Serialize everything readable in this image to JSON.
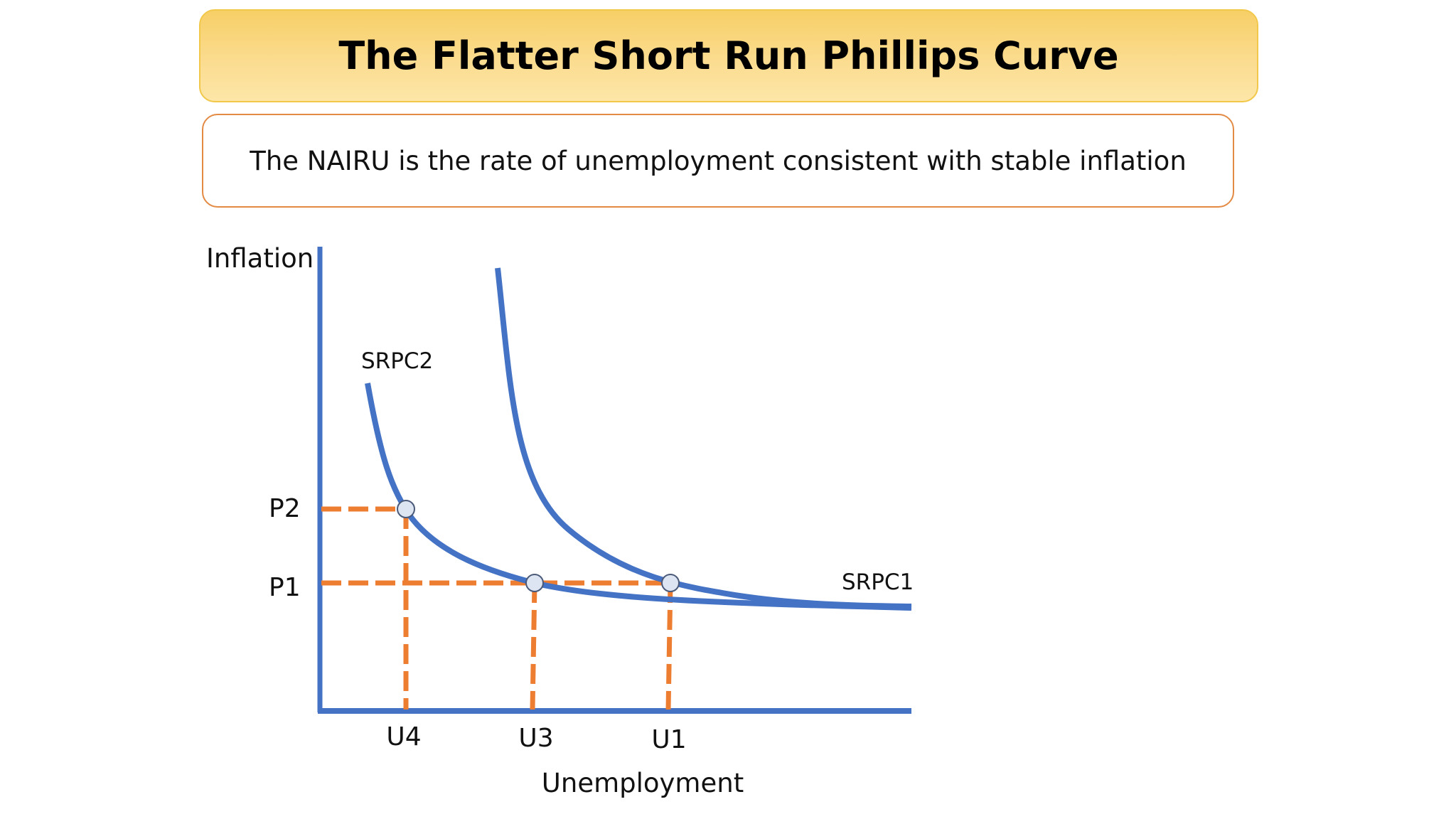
{
  "title": "The Flatter Short Run Phillips Curve",
  "definition": "The NAIRU is the rate of unemployment consistent with stable inflation",
  "diagram": {
    "y_axis_label": "Inflation",
    "x_axis_label": "Unemployment",
    "curves": [
      {
        "name": "SRPC1",
        "label": "SRPC1"
      },
      {
        "name": "SRPC2",
        "label": "SRPC2"
      }
    ],
    "inflation_levels": [
      "P2",
      "P1"
    ],
    "unemployment_levels": [
      "U4",
      "U3",
      "U1"
    ],
    "points": [
      {
        "curve": "SRPC2",
        "unemployment": "U4",
        "inflation": "P2"
      },
      {
        "curve": "SRPC2",
        "unemployment": "U3",
        "inflation": "P1"
      },
      {
        "curve": "SRPC1",
        "unemployment": "U1",
        "inflation": "P1"
      }
    ],
    "colors": {
      "axis": "#4472c4",
      "curve": "#4472c4",
      "guide_lines": "#ed7d31",
      "point_fill": "#dde5f3",
      "title_fill": "#fbd87f",
      "definition_border": "#e38a44"
    }
  }
}
